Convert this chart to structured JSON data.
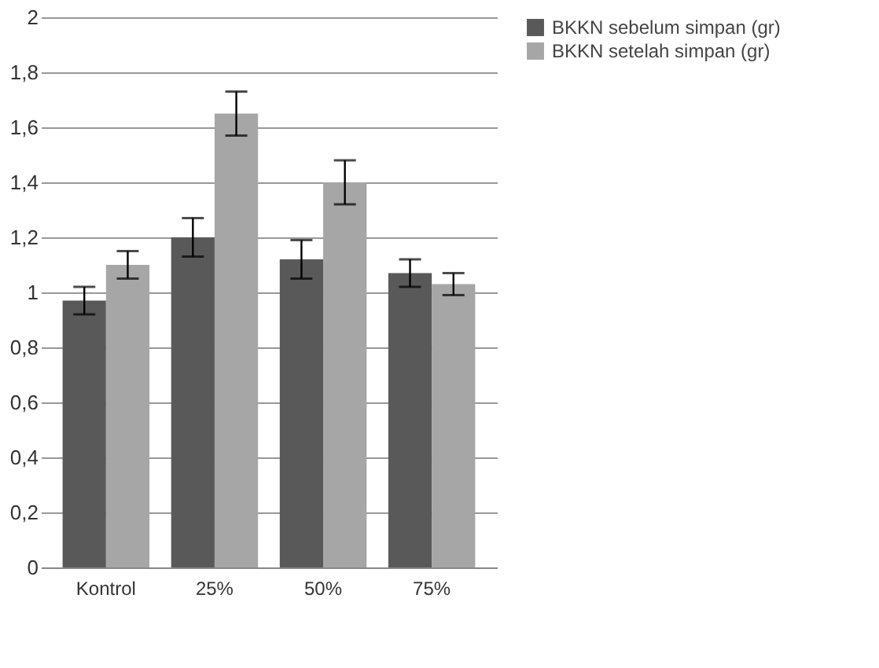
{
  "chart_data": {
    "type": "bar",
    "categories": [
      "Kontrol",
      "25%",
      "50%",
      "75%"
    ],
    "series": [
      {
        "name": "BKKN sebelum simpan (gr)",
        "color": "#595959",
        "values": [
          0.97,
          1.2,
          1.12,
          1.07
        ],
        "errors": [
          0.05,
          0.07,
          0.07,
          0.05
        ]
      },
      {
        "name": "BKKN setelah simpan (gr)",
        "color": "#a6a6a6",
        "values": [
          1.1,
          1.65,
          1.4,
          1.03
        ],
        "errors": [
          0.05,
          0.08,
          0.08,
          0.04
        ]
      }
    ],
    "ylim": [
      0,
      2
    ],
    "yticks": [
      {
        "value": 0,
        "label": "0"
      },
      {
        "value": 0.2,
        "label": "0,2"
      },
      {
        "value": 0.4,
        "label": "0,4"
      },
      {
        "value": 0.6,
        "label": "0,6"
      },
      {
        "value": 0.8,
        "label": "0,8"
      },
      {
        "value": 1,
        "label": "1"
      },
      {
        "value": 1.2,
        "label": "1,2"
      },
      {
        "value": 1.4,
        "label": "1,4"
      },
      {
        "value": 1.6,
        "label": "1,6"
      },
      {
        "value": 1.8,
        "label": "1,8"
      },
      {
        "value": 2,
        "label": "2"
      }
    ],
    "grid": "y",
    "legend": "right"
  }
}
